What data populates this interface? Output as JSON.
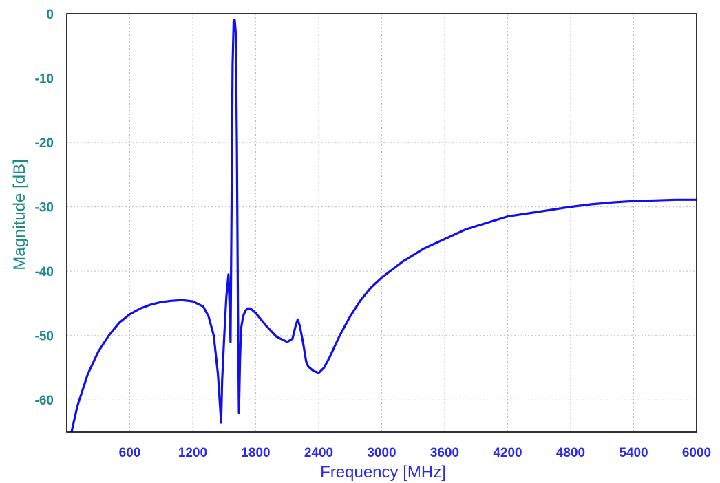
{
  "chart_data": {
    "type": "line",
    "title": "",
    "xlabel": "Frequency [MHz]",
    "ylabel": "Magnitude [dB]",
    "xlim": [
      0,
      6000
    ],
    "ylim": [
      -65,
      0
    ],
    "grid": true,
    "x_ticks": [
      600,
      1200,
      1800,
      2400,
      3000,
      3600,
      4200,
      4800,
      5400,
      6000
    ],
    "x_tick_labels": [
      "600",
      "1200",
      "1800",
      "2400",
      "3000",
      "3600",
      "4200",
      "4800",
      "5400",
      "6000"
    ],
    "y_ticks": [
      0,
      -10,
      -20,
      -30,
      -40,
      -50,
      -60
    ],
    "y_tick_labels": [
      "0",
      "-10",
      "-20",
      "-30",
      "-40",
      "-50",
      "-60"
    ],
    "colors": {
      "series": "#1010ee",
      "x_axis_text": "#2a2aee",
      "y_axis_text": "#1a8a8a",
      "grid": "#bdbdbd",
      "frame": "#000000"
    },
    "series": [
      {
        "x": [
          45,
          100,
          200,
          300,
          400,
          500,
          600,
          700,
          800,
          900,
          1000,
          1100,
          1200,
          1300,
          1350,
          1400,
          1440,
          1470,
          1480,
          1500,
          1520,
          1540,
          1550,
          1560,
          1570,
          1580,
          1590,
          1600,
          1610,
          1620,
          1630,
          1640,
          1650,
          1660,
          1680,
          1700,
          1720,
          1750,
          1800,
          1900,
          2000,
          2100,
          2150,
          2180,
          2200,
          2220,
          2250,
          2280,
          2300,
          2350,
          2400,
          2450,
          2500,
          2600,
          2700,
          2800,
          2900,
          3000,
          3200,
          3400,
          3600,
          3800,
          4000,
          4200,
          4400,
          4600,
          4800,
          5000,
          5200,
          5400,
          5600,
          5800,
          6000
        ],
        "y": [
          -65,
          -61,
          -56,
          -52.5,
          -50,
          -48,
          -46.7,
          -45.8,
          -45.2,
          -44.8,
          -44.6,
          -44.5,
          -44.7,
          -45.5,
          -47,
          -50,
          -56,
          -63.5,
          -57,
          -50,
          -44,
          -40.5,
          -45,
          -51,
          -30,
          -8,
          -1,
          -1,
          -3,
          -20,
          -45,
          -62,
          -54,
          -49,
          -47,
          -46.2,
          -45.8,
          -45.8,
          -46.5,
          -48.5,
          -50.2,
          -51,
          -50.5,
          -48.5,
          -47.5,
          -48.5,
          -51,
          -54,
          -54.8,
          -55.5,
          -55.8,
          -55,
          -53.5,
          -50,
          -47,
          -44.5,
          -42.5,
          -41,
          -38.5,
          -36.5,
          -35,
          -33.5,
          -32.5,
          -31.5,
          -31,
          -30.5,
          -30,
          -29.6,
          -29.3,
          -29.1,
          -29,
          -28.9,
          -28.9
        ]
      }
    ]
  }
}
